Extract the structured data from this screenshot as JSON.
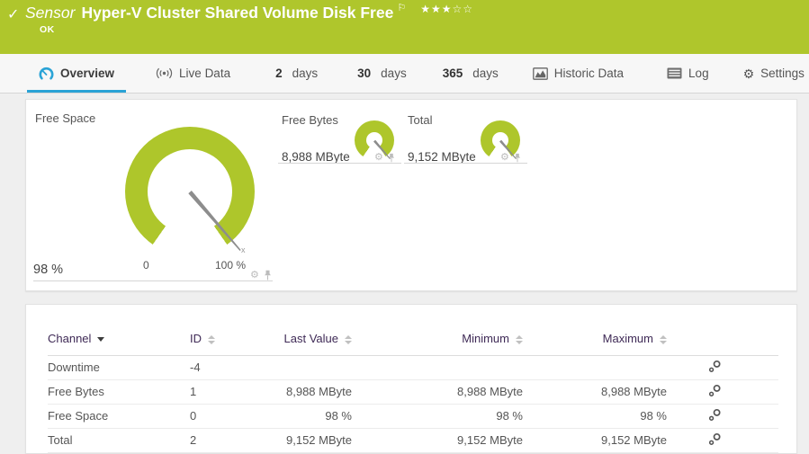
{
  "colors": {
    "status_green": "#afc62c",
    "accent_blue": "#2aa3d6",
    "table_header_text": "#3f2a56",
    "gauge_green": "#aec62b",
    "needle_gray": "#8d8d8d"
  },
  "header": {
    "status_icon": "check-icon",
    "kind_label": "Sensor",
    "title": "Hyper-V Cluster Shared Volume Disk Free",
    "flag_icon": "flag-icon",
    "stars_filled": 3,
    "stars_total": 5,
    "status": "OK"
  },
  "tabs": [
    {
      "label": "Overview",
      "icon": "gauge-icon",
      "active": true
    },
    {
      "label": "Live Data",
      "icon": "live-data-icon"
    },
    {
      "num": "2",
      "label": "days"
    },
    {
      "num": "30",
      "label": "days"
    },
    {
      "num": "365",
      "label": "days"
    },
    {
      "label": "Historic Data",
      "icon": "area-chart-icon"
    },
    {
      "label": "Log",
      "icon": "log-icon"
    },
    {
      "label": "Settings",
      "icon": "gear-icon"
    }
  ],
  "gauges": {
    "primary": {
      "title": "Free Space",
      "value": "98 %",
      "percent": 98,
      "min_label": "0",
      "max_label": "100 %",
      "multiplier_label": "x"
    },
    "secondary": [
      {
        "title": "Free Bytes",
        "value": "8,988 MByte",
        "percent": 98
      },
      {
        "title": "Total",
        "value": "9,152 MByte",
        "percent": 98
      }
    ]
  },
  "table": {
    "sorted_by": "Channel",
    "columns": [
      {
        "label": "Channel"
      },
      {
        "label": "ID"
      },
      {
        "label": "Last Value"
      },
      {
        "label": "Minimum"
      },
      {
        "label": "Maximum"
      }
    ],
    "rows": [
      {
        "channel": "Downtime",
        "id": "-4",
        "last": "",
        "min": "",
        "max": ""
      },
      {
        "channel": "Free Bytes",
        "id": "1",
        "last": "8,988 MByte",
        "min": "8,988 MByte",
        "max": "8,988 MByte"
      },
      {
        "channel": "Free Space",
        "id": "0",
        "last": "98 %",
        "min": "98 %",
        "max": "98 %"
      },
      {
        "channel": "Total",
        "id": "2",
        "last": "9,152 MByte",
        "min": "9,152 MByte",
        "max": "9,152 MByte"
      }
    ]
  }
}
